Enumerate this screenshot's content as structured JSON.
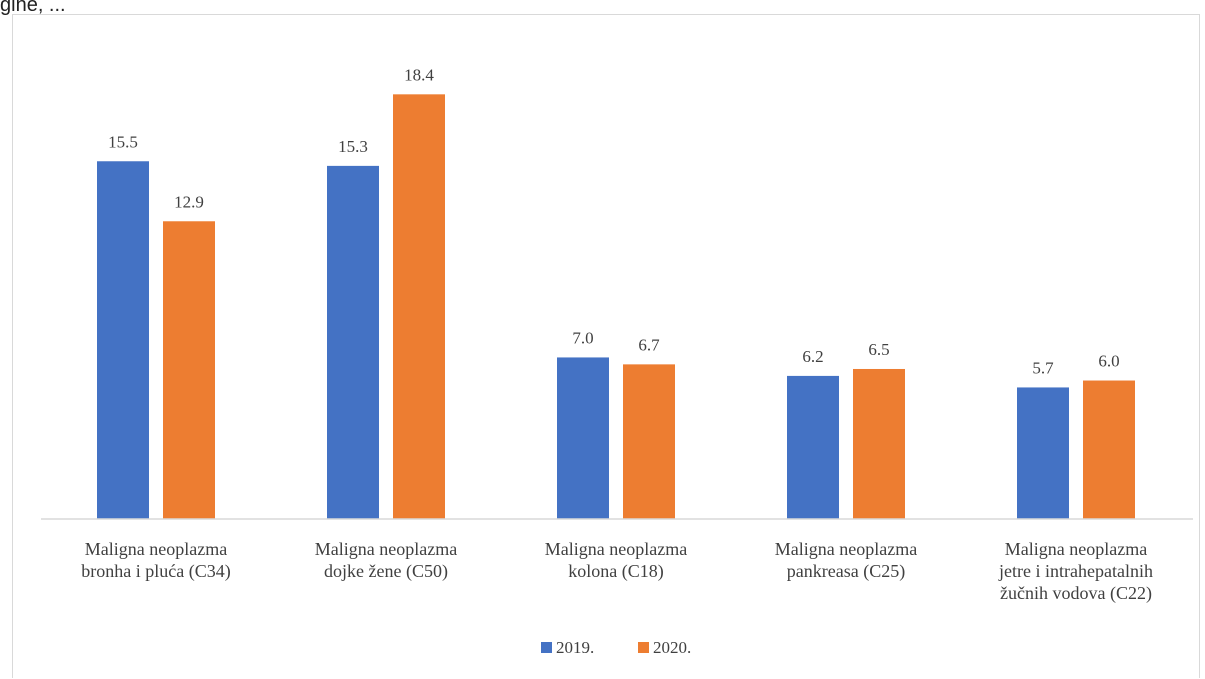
{
  "page": {
    "top_fragment": "gine, ..."
  },
  "chart_data": {
    "type": "bar",
    "title": "",
    "xlabel": "",
    "ylabel": "",
    "ylim": [
      0,
      20
    ],
    "grid": false,
    "legend_position": "bottom",
    "categories": [
      [
        "Maligna neoplazma",
        "bronha i pluća (C34)"
      ],
      [
        "Maligna neoplazma",
        "dojke žene (C50)"
      ],
      [
        "Maligna neoplazma",
        "kolona  (C18)"
      ],
      [
        "Maligna neoplazma",
        "pankreasa (C25)"
      ],
      [
        "Maligna neoplazma",
        "jetre i intrahepatalnih",
        "žučnih vodova  (C22)"
      ]
    ],
    "series": [
      {
        "name": "2019.",
        "color": "#4472C4",
        "values": [
          15.5,
          15.3,
          7.0,
          6.2,
          5.7
        ]
      },
      {
        "name": "2020.",
        "color": "#ED7D31",
        "values": [
          12.9,
          18.4,
          6.7,
          6.5,
          6.0
        ]
      }
    ]
  }
}
